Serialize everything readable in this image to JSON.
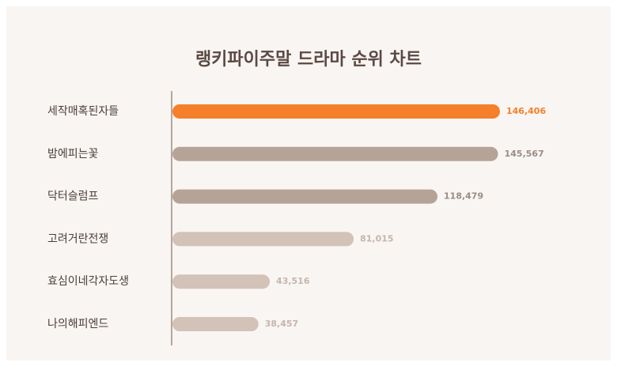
{
  "chart_data": {
    "type": "hbar",
    "title": "랭키파이주말 드라마 순위 차트",
    "categories": [
      "세작매혹된자들",
      "밤에피는꽃",
      "닥터슬럼프",
      "고려거란전쟁",
      "효심이네각자도생",
      "나의해피엔드"
    ],
    "values": [
      146406,
      145567,
      118479,
      81015,
      43516,
      38457
    ],
    "value_labels": [
      "146,406",
      "145,567",
      "118,479",
      "81,015",
      "43,516",
      "38,457"
    ],
    "colors": [
      "#f57f2a",
      "#b6a398",
      "#b6a398",
      "#d3c2b8",
      "#d3c2b8",
      "#d3c2b8"
    ],
    "label_colors": [
      "#f57f2a",
      "#9a8c84",
      "#9a8c84",
      "#c4b5ac",
      "#c4b5ac",
      "#c4b5ac"
    ]
  }
}
